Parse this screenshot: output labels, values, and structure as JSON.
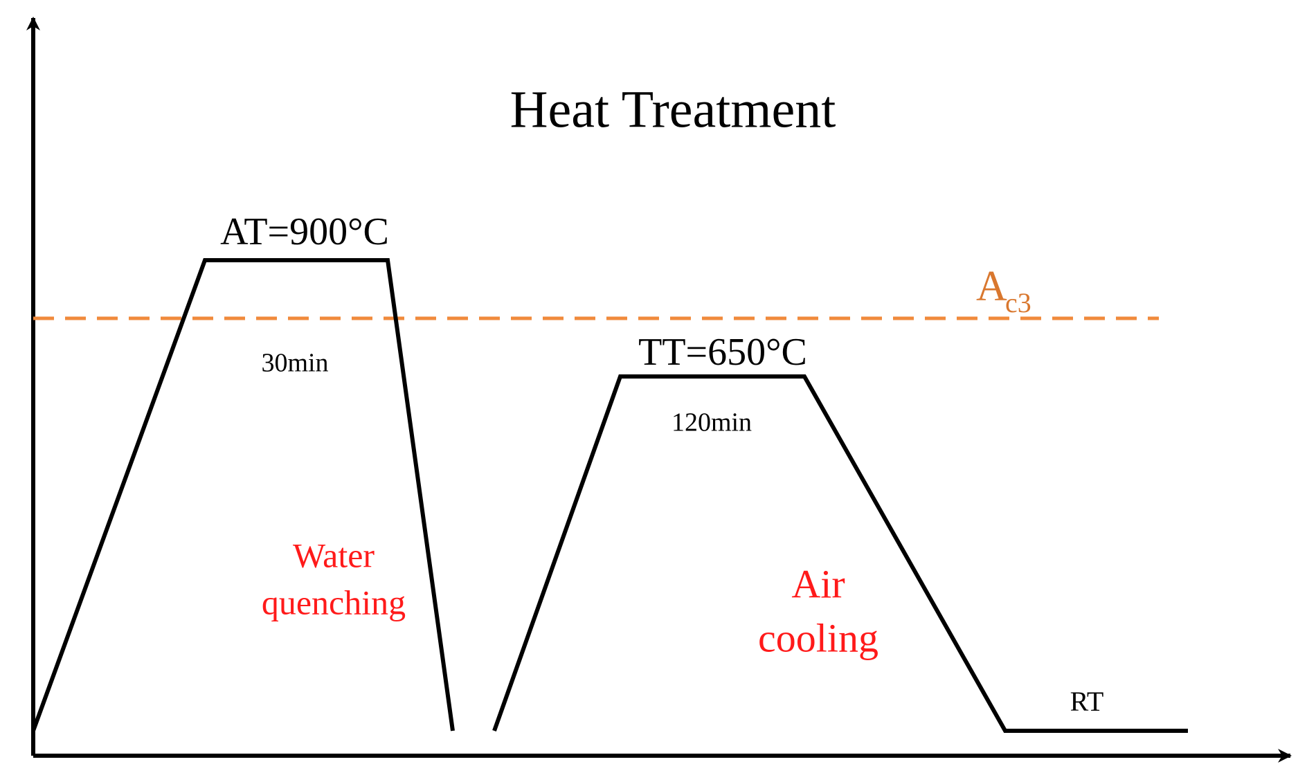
{
  "title": "Heat Treatment",
  "austenitizing": {
    "label": "AT=900°C",
    "time": "30min",
    "cooling": [
      "Water",
      "quenching"
    ]
  },
  "tempering": {
    "label": "TT=650°C",
    "time": "120min",
    "cooling": [
      "Air",
      "cooling"
    ]
  },
  "critical_line": {
    "symbol": "A",
    "subscript": "c3"
  },
  "room_temperature": "RT"
}
